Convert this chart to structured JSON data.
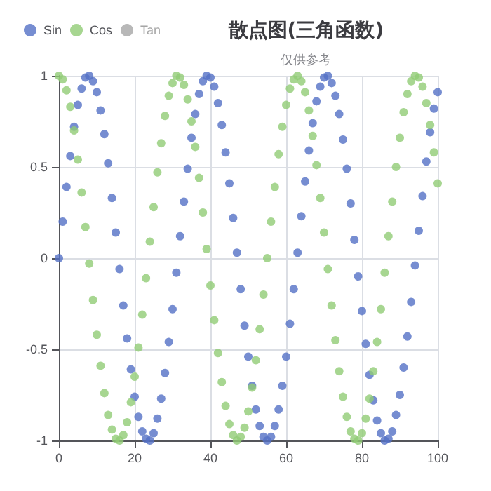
{
  "chart_data": {
    "type": "scatter",
    "title": "散点图(三角函数)",
    "subtitle": "仅供参考",
    "x": [
      0,
      1,
      2,
      3,
      4,
      5,
      6,
      7,
      8,
      9,
      10,
      11,
      12,
      13,
      14,
      15,
      16,
      17,
      18,
      19,
      20,
      21,
      22,
      23,
      24,
      25,
      26,
      27,
      28,
      29,
      30,
      31,
      32,
      33,
      34,
      35,
      36,
      37,
      38,
      39,
      40,
      41,
      42,
      43,
      44,
      45,
      46,
      47,
      48,
      49,
      50,
      51,
      52,
      53,
      54,
      55,
      56,
      57,
      58,
      59,
      60,
      61,
      62,
      63,
      64,
      65,
      66,
      67,
      68,
      69,
      70,
      71,
      72,
      73,
      74,
      75,
      76,
      77,
      78,
      79,
      80,
      81,
      82,
      83,
      84,
      85,
      86,
      87,
      88,
      89,
      90,
      91,
      92,
      93,
      94,
      95,
      96,
      97,
      98,
      99,
      100
    ],
    "series": [
      {
        "name": "Sin",
        "color": "#5470c6",
        "values": [
          0.0,
          0.2,
          0.39,
          0.56,
          0.72,
          0.84,
          0.93,
          0.99,
          1.0,
          0.97,
          0.91,
          0.81,
          0.68,
          0.52,
          0.33,
          0.14,
          -0.06,
          -0.26,
          -0.44,
          -0.61,
          -0.76,
          -0.87,
          -0.95,
          -0.99,
          -1.0,
          -0.96,
          -0.88,
          -0.77,
          -0.63,
          -0.46,
          -0.28,
          -0.08,
          0.12,
          0.31,
          0.49,
          0.66,
          0.79,
          0.9,
          0.97,
          1.0,
          0.99,
          0.94,
          0.85,
          0.73,
          0.58,
          0.41,
          0.22,
          0.03,
          -0.17,
          -0.37,
          -0.54,
          -0.7,
          -0.83,
          -0.92,
          -0.98,
          -1.0,
          -0.98,
          -0.92,
          -0.83,
          -0.7,
          -0.54,
          -0.36,
          -0.17,
          0.03,
          0.23,
          0.42,
          0.59,
          0.74,
          0.86,
          0.94,
          0.99,
          1.0,
          0.96,
          0.89,
          0.79,
          0.65,
          0.49,
          0.3,
          0.1,
          -0.1,
          -0.29,
          -0.47,
          -0.64,
          -0.78,
          -0.89,
          -0.96,
          -1.0,
          -0.99,
          -0.95,
          -0.86,
          -0.75,
          -0.6,
          -0.43,
          -0.24,
          -0.04,
          0.15,
          0.34,
          0.53,
          0.69,
          0.82,
          0.91
        ]
      },
      {
        "name": "Cos",
        "color": "#91cc75",
        "values": [
          1.0,
          0.98,
          0.92,
          0.83,
          0.7,
          0.54,
          0.36,
          0.17,
          -0.03,
          -0.23,
          -0.42,
          -0.59,
          -0.74,
          -0.86,
          -0.94,
          -0.99,
          -1.0,
          -0.97,
          -0.9,
          -0.79,
          -0.65,
          -0.49,
          -0.31,
          -0.11,
          0.09,
          0.28,
          0.47,
          0.63,
          0.78,
          0.89,
          0.96,
          1.0,
          0.99,
          0.95,
          0.87,
          0.75,
          0.61,
          0.44,
          0.25,
          0.05,
          -0.15,
          -0.34,
          -0.52,
          -0.68,
          -0.81,
          -0.91,
          -0.97,
          -1.0,
          -0.98,
          -0.93,
          -0.84,
          -0.71,
          -0.56,
          -0.39,
          -0.2,
          0.0,
          0.2,
          0.39,
          0.57,
          0.72,
          0.84,
          0.93,
          0.98,
          1.0,
          0.97,
          0.91,
          0.81,
          0.67,
          0.51,
          0.33,
          0.14,
          -0.06,
          -0.26,
          -0.45,
          -0.62,
          -0.76,
          -0.87,
          -0.95,
          -0.99,
          -1.0,
          -0.96,
          -0.88,
          -0.77,
          -0.62,
          -0.46,
          -0.28,
          -0.08,
          0.12,
          0.31,
          0.5,
          0.66,
          0.8,
          0.9,
          0.97,
          1.0,
          0.99,
          0.94,
          0.85,
          0.73,
          0.58,
          0.41
        ]
      },
      {
        "name": "Tan",
        "color": "#a6a6a6",
        "values": [
          null,
          null,
          null,
          null,
          null,
          null,
          null,
          null,
          null,
          null,
          null,
          null,
          null,
          null,
          null,
          null,
          null,
          null,
          null,
          null,
          null,
          null,
          null,
          null,
          null,
          null,
          null,
          null,
          null,
          null,
          null,
          null,
          null,
          null,
          null,
          null,
          null,
          null,
          null,
          null,
          null,
          null,
          null,
          null,
          null,
          null,
          null,
          null,
          null,
          null,
          null,
          null,
          null,
          null,
          null,
          null,
          null,
          null,
          null,
          null,
          null,
          null,
          null,
          null,
          null,
          null,
          null,
          null,
          null,
          null,
          null,
          null,
          null,
          null,
          null,
          null,
          null,
          null,
          null,
          null,
          null,
          null,
          null,
          null,
          null,
          null,
          null,
          null,
          null,
          null,
          null,
          null,
          null,
          null,
          null,
          null,
          null,
          null,
          null,
          null,
          null
        ]
      }
    ],
    "xlim": [
      0,
      100
    ],
    "xticks": [
      0,
      20,
      40,
      60,
      80,
      100
    ],
    "ylim": [
      -1,
      1
    ],
    "yticks": [
      -1,
      -0.5,
      0,
      0.5,
      1
    ],
    "grid": true,
    "legend": "top left",
    "marker": "circle"
  }
}
